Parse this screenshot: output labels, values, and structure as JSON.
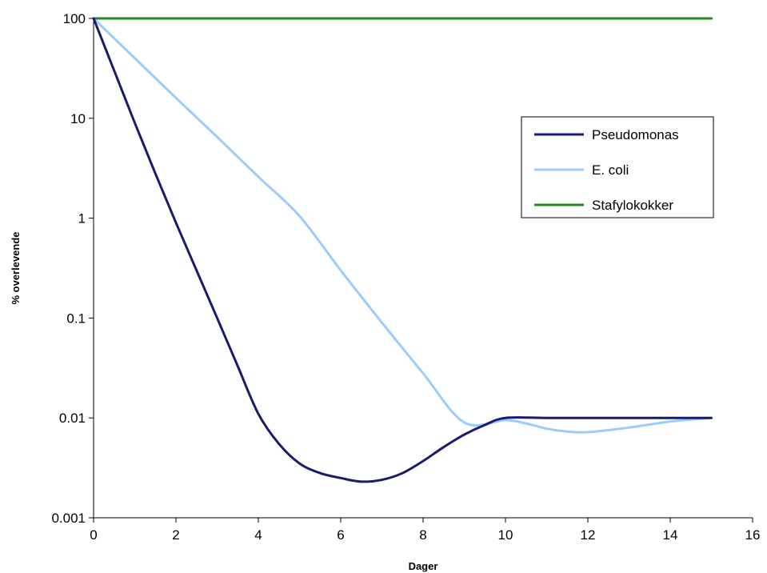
{
  "chart_data": {
    "type": "line",
    "title": "",
    "xlabel": "Dager",
    "ylabel": "% overlevende",
    "xlim": [
      0,
      16
    ],
    "ylim": [
      0.001,
      100
    ],
    "yscale": "log",
    "grid": false,
    "legend_position": "right",
    "x_ticks": [
      "0",
      "2",
      "4",
      "6",
      "8",
      "10",
      "12",
      "14",
      "16"
    ],
    "y_ticks": [
      "0.001",
      "0.01",
      "0.1",
      "1",
      "10",
      "100"
    ],
    "series": [
      {
        "name": "Pseudomonas",
        "color": "#1a1a6e",
        "x": [
          0,
          0.5,
          1,
          1.5,
          2,
          2.5,
          3,
          3.5,
          4,
          4.5,
          5,
          5.5,
          6,
          6.5,
          7,
          7.5,
          8,
          8.5,
          9,
          9.5,
          10,
          11,
          12,
          13,
          14,
          15
        ],
        "y": [
          100,
          30,
          9,
          2.8,
          0.9,
          0.3,
          0.1,
          0.033,
          0.011,
          0.0055,
          0.0035,
          0.0028,
          0.0025,
          0.0023,
          0.0024,
          0.0028,
          0.0037,
          0.0051,
          0.0068,
          0.0085,
          0.01,
          0.01,
          0.01,
          0.01,
          0.01,
          0.01
        ]
      },
      {
        "name": "E. coli",
        "color": "#99ccff",
        "x": [
          0,
          1,
          2,
          3,
          4,
          5,
          6,
          7,
          8,
          9,
          10,
          10.5,
          11,
          11.5,
          12,
          13,
          14,
          15
        ],
        "y": [
          100,
          40,
          16,
          6.5,
          2.6,
          1.05,
          0.3,
          0.09,
          0.028,
          0.009,
          0.0095,
          0.0088,
          0.0078,
          0.0073,
          0.0072,
          0.008,
          0.0092,
          0.01
        ]
      },
      {
        "name": "Stafylokokker",
        "color": "#228b22",
        "x": [
          0,
          15
        ],
        "y": [
          100,
          100
        ]
      }
    ]
  }
}
